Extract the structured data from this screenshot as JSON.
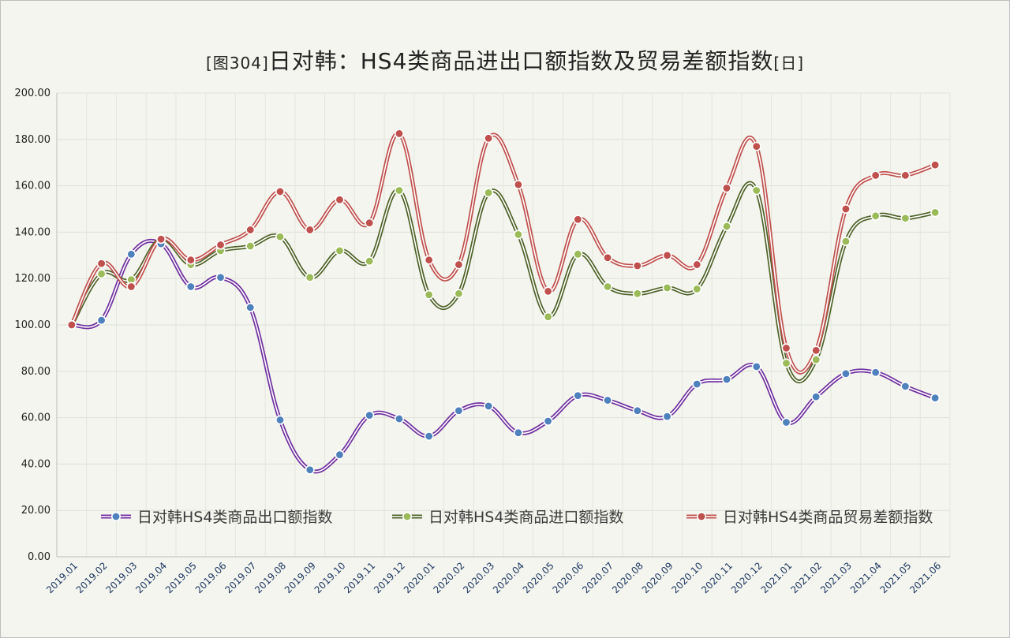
{
  "chart_data": {
    "type": "line",
    "title": "[图304]日对韩：HS4类商品进出口额指数及贸易差额指数[日]",
    "title_parts": {
      "prefix": "[图304]",
      "main": "日对韩：HS4类商品进出口额指数及贸易差额指数",
      "suffix": "[日]"
    },
    "xlabel": "",
    "ylabel": "",
    "ylim": [
      0,
      200
    ],
    "yticks": [
      "0.00",
      "20.00",
      "40.00",
      "60.00",
      "80.00",
      "100.00",
      "120.00",
      "140.00",
      "160.00",
      "180.00",
      "200.00"
    ],
    "grid": true,
    "legend_position": "bottom-inside",
    "categories": [
      "2019.01",
      "2019.02",
      "2019.03",
      "2019.04",
      "2019.05",
      "2019.06",
      "2019.07",
      "2019.08",
      "2019.09",
      "2019.10",
      "2019.11",
      "2019.12",
      "2020.01",
      "2020.02",
      "2020.03",
      "2020.04",
      "2020.05",
      "2020.06",
      "2020.07",
      "2020.08",
      "2020.09",
      "2020.10",
      "2020.11",
      "2020.12",
      "2021.01",
      "2021.02",
      "2021.03",
      "2021.04",
      "2021.05",
      "2021.06"
    ],
    "series": [
      {
        "name": "日对韩HS4类商品出口额指数",
        "line_color": "#7030a0",
        "marker_color": "#4f81bd",
        "values": [
          100.0,
          102.0,
          130.5,
          135.0,
          116.5,
          120.5,
          107.5,
          59.0,
          37.5,
          44.0,
          61.0,
          59.5,
          52.0,
          63.0,
          65.0,
          53.5,
          58.5,
          69.5,
          67.5,
          63.0,
          60.5,
          74.5,
          76.5,
          82.0,
          58.0,
          69.0,
          79.0,
          79.5,
          73.5,
          68.5
        ]
      },
      {
        "name": "日对韩HS4类商品进口额指数",
        "line_color": "#4f6228",
        "marker_color": "#9bbb59",
        "values": [
          100.0,
          122.0,
          119.5,
          137.0,
          126.0,
          132.0,
          134.0,
          138.0,
          120.5,
          132.0,
          127.5,
          158.0,
          113.0,
          113.5,
          157.0,
          139.0,
          103.5,
          130.5,
          116.5,
          113.5,
          116.0,
          115.5,
          142.5,
          158.0,
          83.5,
          85.0,
          136.0,
          147.0,
          146.0,
          148.5
        ]
      },
      {
        "name": "日对韩HS4类商品贸易差额指数",
        "line_color": "#c0504d",
        "marker_color": "#c0504d",
        "values": [
          100.0,
          126.5,
          116.5,
          137.0,
          128.0,
          134.5,
          141.0,
          157.5,
          141.0,
          154.0,
          144.0,
          182.5,
          128.0,
          126.0,
          180.5,
          160.5,
          114.5,
          145.5,
          129.0,
          125.5,
          130.0,
          126.0,
          159.0,
          177.0,
          90.0,
          89.0,
          150.0,
          164.5,
          164.5,
          169.0
        ]
      }
    ]
  }
}
